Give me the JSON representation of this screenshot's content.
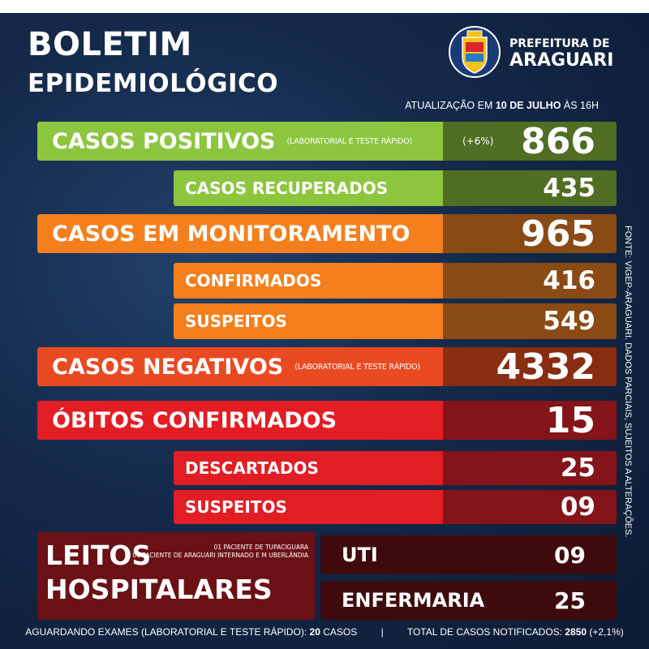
{
  "header": {
    "title_line1": "BOLETIM",
    "title_line2": "EPIDEMIOLÓGICO",
    "org_line1": "PREFEITURA DE",
    "org_line2": "ARAGUARI",
    "crest_icon": "city-crest-icon",
    "update_prefix": "ATUALIZAÇÃO EM ",
    "update_date": "10 DE JULHO",
    "update_suffix": " ÀS 16H"
  },
  "stats": {
    "positivos": {
      "label": "CASOS POSITIVOS",
      "note": "(LABORATORIAL E TESTE RÁPIDO)",
      "change": "(+6%)",
      "value": "866"
    },
    "recuperados": {
      "label": "CASOS RECUPERADOS",
      "value": "435"
    },
    "monitoramento": {
      "label": "CASOS EM MONITORAMENTO",
      "value": "965"
    },
    "confirmados": {
      "label": "CONFIRMADOS",
      "value": "416"
    },
    "suspeitos_mon": {
      "label": "SUSPEITOS",
      "value": "549"
    },
    "negativos": {
      "label": "CASOS NEGATIVOS",
      "note": "(LABORATORIAL E TESTE RÁPIDO)",
      "value": "4332"
    },
    "obitos": {
      "label": "ÓBITOS CONFIRMADOS",
      "value": "15"
    },
    "descartados": {
      "label": "DESCARTADOS",
      "value": "25"
    },
    "suspeitos_obitos": {
      "label": "SUSPEITOS",
      "value": "09"
    }
  },
  "leitos": {
    "title_line1": "LEITOS",
    "title_line2": "HOSPITALARES",
    "note_line1": "01 PACIENTE DE TUPACIGUARA",
    "note_line2": "01 PACIENTE DE ARAGUARI INTERNADO E M UBERLÂNDIA",
    "uti_label": "UTI",
    "uti_value": "09",
    "enfermaria_label": "ENFERMARIA",
    "enfermaria_value": "25"
  },
  "footer": {
    "awaiting_prefix": "AGUARDANDO EXAMES (LABORATORIAL E TESTE RÁPIDO): ",
    "awaiting_value": "20",
    "awaiting_suffix": " CASOS",
    "separator": "|",
    "total_prefix": "TOTAL DE CASOS NOTIFICADOS: ",
    "total_value": "2850",
    "total_suffix": " (+2,1%)"
  },
  "source": "FONTE: VIGEP-ARAGUARI. DADOS PARCIAIS, SUJEITOS A ALTERAÇÕES.",
  "colors": {
    "green": "#8cc63e",
    "orange": "#f57f1d",
    "red": "#e21d24",
    "dark_red": "#6b1015",
    "background": "#14294a"
  }
}
